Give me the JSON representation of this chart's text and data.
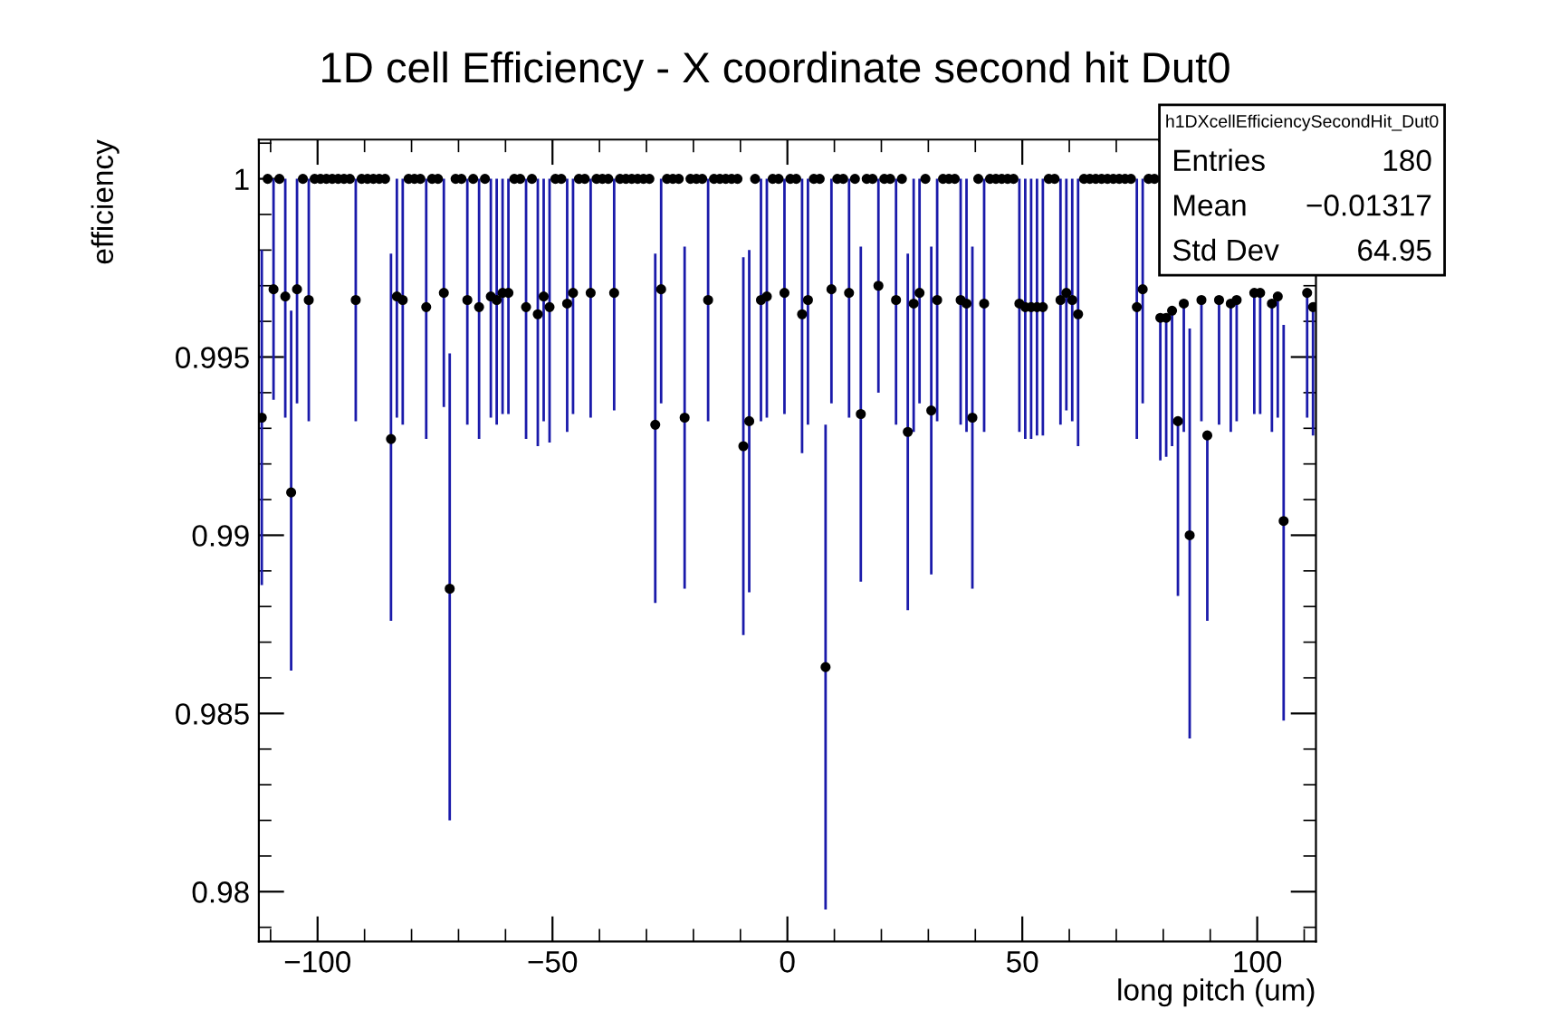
{
  "chart_data": {
    "type": "scatter",
    "title": "1D cell Efficiency - X coordinate second hit Dut0",
    "xlabel": "long pitch (um)",
    "ylabel": "efficiency",
    "xlim": [
      -112.5,
      112.5
    ],
    "ylim": [
      0.9786,
      1.0011
    ],
    "xticks": [
      -100,
      -50,
      0,
      50,
      100
    ],
    "yticks": [
      0.98,
      0.985,
      0.99,
      0.995,
      1
    ],
    "grid": false,
    "marker": "circle",
    "annotations": [
      "h1DXcellEfficiencySecondHit_Dut0",
      "Entries 180",
      "Mean −0.01317",
      "Std Dev 64.95"
    ],
    "series": [
      {
        "color": "#000000",
        "x": [
          -111.875,
          -110.625,
          -109.375,
          -108.125,
          -106.875,
          -105.625,
          -104.375,
          -103.125,
          -101.875,
          -100.625,
          -99.375,
          -98.125,
          -96.875,
          -95.625,
          -94.375,
          -93.125,
          -91.875,
          -90.625,
          -89.375,
          -88.125,
          -86.875,
          -85.625,
          -84.375,
          -83.125,
          -81.875,
          -80.625,
          -79.375,
          -78.125,
          -76.875,
          -75.625,
          -74.375,
          -73.125,
          -71.875,
          -70.625,
          -69.375,
          -68.125,
          -66.875,
          -65.625,
          -64.375,
          -63.125,
          -61.875,
          -60.625,
          -59.375,
          -58.125,
          -56.875,
          -55.625,
          -54.375,
          -53.125,
          -51.875,
          -50.625,
          -49.375,
          -48.125,
          -46.875,
          -45.625,
          -44.375,
          -43.125,
          -41.875,
          -40.625,
          -39.375,
          -38.125,
          -36.875,
          -35.625,
          -34.375,
          -33.125,
          -31.875,
          -30.625,
          -29.375,
          -28.125,
          -26.875,
          -25.625,
          -24.375,
          -23.125,
          -21.875,
          -20.625,
          -19.375,
          -18.125,
          -16.875,
          -15.625,
          -14.375,
          -13.125,
          -11.875,
          -10.625,
          -9.375,
          -8.125,
          -6.875,
          -5.625,
          -4.375,
          -3.125,
          -1.875,
          -0.625,
          0.625,
          1.875,
          3.125,
          4.375,
          5.625,
          6.875,
          8.125,
          9.375,
          10.625,
          11.875,
          13.125,
          14.375,
          15.625,
          16.875,
          18.125,
          19.375,
          20.625,
          21.875,
          23.125,
          24.375,
          25.625,
          26.875,
          28.125,
          29.375,
          30.625,
          31.875,
          33.125,
          34.375,
          35.625,
          36.875,
          38.125,
          39.375,
          40.625,
          41.875,
          43.125,
          44.375,
          45.625,
          46.875,
          48.125,
          49.375,
          50.625,
          51.875,
          53.125,
          54.375,
          55.625,
          56.875,
          58.125,
          59.375,
          60.625,
          61.875,
          63.125,
          64.375,
          65.625,
          66.875,
          68.125,
          69.375,
          70.625,
          71.875,
          73.125,
          74.375,
          75.625,
          76.875,
          78.125,
          79.375,
          80.625,
          81.875,
          83.125,
          84.375,
          85.625,
          86.875,
          88.125,
          89.375,
          90.625,
          91.875,
          93.125,
          94.375,
          95.625,
          96.875,
          98.125,
          99.375,
          100.625,
          101.875,
          103.125,
          104.375,
          105.625,
          106.875,
          108.125,
          109.375,
          110.625,
          111.875
        ],
        "values": [
          0.9933,
          1,
          0.9969,
          1,
          0.9967,
          0.9912,
          0.9969,
          1,
          0.9966,
          1,
          1,
          1,
          1,
          1,
          1,
          1,
          0.9966,
          1,
          1,
          1,
          1,
          1,
          0.9927,
          0.9967,
          0.9966,
          1,
          1,
          1,
          0.9964,
          1,
          1,
          0.9968,
          0.9885,
          1,
          1,
          0.9966,
          1,
          0.9964,
          1,
          0.9967,
          0.9966,
          0.9968,
          0.9968,
          1,
          1,
          0.9964,
          1,
          0.9962,
          0.9967,
          0.9964,
          1,
          1,
          0.9965,
          0.9968,
          1,
          1,
          0.9968,
          1,
          1,
          1,
          0.9968,
          1,
          1,
          1,
          1,
          1,
          1,
          0.9931,
          0.9969,
          1,
          1,
          1,
          0.9933,
          1,
          1,
          1,
          0.9966,
          1,
          1,
          1,
          1,
          1,
          0.9925,
          0.9932,
          1,
          0.9966,
          0.9967,
          1,
          1,
          0.9968,
          1,
          1,
          0.9962,
          0.9966,
          1,
          1,
          0.9863,
          0.9969,
          1,
          1,
          0.9968,
          1,
          0.9934,
          1,
          1,
          0.997,
          1,
          1,
          0.9966,
          1,
          0.9929,
          0.9965,
          0.9968,
          1,
          0.9935,
          0.9966,
          1,
          1,
          1,
          0.9966,
          0.9965,
          0.9933,
          1,
          0.9965,
          1,
          1,
          1,
          1,
          1,
          0.9965,
          0.9964,
          0.9964,
          0.9964,
          0.9964,
          1,
          1,
          0.9966,
          0.9968,
          0.9966,
          0.9962,
          1,
          1,
          1,
          1,
          1,
          1,
          1,
          1,
          1,
          0.9964,
          0.9969,
          1,
          1,
          0.9961,
          0.9961,
          0.9963,
          0.9932,
          0.9965,
          0.99,
          null,
          0.9966,
          0.9928,
          null,
          0.9966,
          null,
          0.9965,
          0.9966,
          null,
          null,
          0.9968,
          0.9968,
          null,
          0.9965,
          0.9967,
          0.9904,
          null,
          null,
          null,
          0.9968,
          0.9964
        ],
        "errors": [
          [
            0.9886,
            0.998
          ],
          null,
          [
            0.9938,
            1
          ],
          null,
          [
            0.9933,
            1
          ],
          [
            0.9862,
            0.9963
          ],
          [
            0.9937,
            1
          ],
          null,
          [
            0.9932,
            1
          ],
          null,
          null,
          null,
          null,
          null,
          null,
          null,
          [
            0.9932,
            1
          ],
          null,
          null,
          null,
          null,
          null,
          [
            0.9876,
            0.9979
          ],
          [
            0.9933,
            1
          ],
          [
            0.9931,
            1
          ],
          null,
          null,
          null,
          [
            0.9927,
            1
          ],
          null,
          null,
          [
            0.9936,
            1
          ],
          [
            0.982,
            0.9951
          ],
          null,
          null,
          [
            0.9931,
            1
          ],
          null,
          [
            0.9927,
            1
          ],
          null,
          [
            0.9933,
            1
          ],
          [
            0.9931,
            1
          ],
          [
            0.9934,
            1
          ],
          [
            0.9934,
            1
          ],
          null,
          null,
          [
            0.9927,
            1
          ],
          null,
          [
            0.9925,
            1
          ],
          [
            0.9932,
            1
          ],
          [
            0.9926,
            1
          ],
          null,
          null,
          [
            0.9929,
            1
          ],
          [
            0.9934,
            1
          ],
          null,
          null,
          [
            0.9933,
            1
          ],
          null,
          null,
          null,
          [
            0.9935,
            1
          ],
          null,
          null,
          null,
          null,
          null,
          null,
          [
            0.9881,
            0.9979
          ],
          [
            0.9937,
            1
          ],
          null,
          null,
          null,
          [
            0.9885,
            0.9981
          ],
          null,
          null,
          null,
          [
            0.9932,
            1
          ],
          null,
          null,
          null,
          null,
          null,
          [
            0.9872,
            0.9978
          ],
          [
            0.9884,
            0.998
          ],
          null,
          [
            0.9932,
            1
          ],
          [
            0.9933,
            1
          ],
          null,
          null,
          [
            0.9934,
            1
          ],
          null,
          null,
          [
            0.9923,
            1
          ],
          [
            0.9931,
            1
          ],
          null,
          null,
          [
            0.9795,
            0.9931
          ],
          [
            0.9937,
            1
          ],
          null,
          null,
          [
            0.9933,
            1
          ],
          null,
          [
            0.9887,
            0.9981
          ],
          null,
          null,
          [
            0.994,
            1
          ],
          null,
          null,
          [
            0.9931,
            1
          ],
          null,
          [
            0.9879,
            0.9979
          ],
          [
            0.9929,
            1
          ],
          [
            0.9937,
            1
          ],
          null,
          [
            0.9889,
            0.9981
          ],
          [
            0.9932,
            1
          ],
          null,
          null,
          null,
          [
            0.9931,
            1
          ],
          [
            0.9929,
            1
          ],
          [
            0.9885,
            0.9981
          ],
          null,
          [
            0.9929,
            1
          ],
          null,
          null,
          null,
          null,
          null,
          [
            0.9929,
            1
          ],
          [
            0.9927,
            1
          ],
          [
            0.9927,
            1
          ],
          [
            0.9928,
            1
          ],
          [
            0.9928,
            1
          ],
          null,
          null,
          [
            0.9931,
            1
          ],
          [
            0.9935,
            1
          ],
          [
            0.9932,
            1
          ],
          [
            0.9925,
            1
          ],
          null,
          null,
          null,
          null,
          null,
          null,
          null,
          null,
          null,
          [
            0.9927,
            1
          ],
          [
            0.9937,
            1
          ],
          null,
          null,
          [
            0.9921,
            0.9961
          ],
          [
            0.9922,
            0.9961
          ],
          [
            0.9925,
            0.9963
          ],
          [
            0.9883,
            0.9932
          ],
          [
            0.9929,
            0.9965
          ],
          [
            0.9843,
            0.9958
          ],
          null,
          [
            0.9932,
            0.9966
          ],
          [
            0.9876,
            0.9928
          ],
          null,
          [
            0.9931,
            0.9966
          ],
          null,
          [
            0.9929,
            0.9965
          ],
          [
            0.9932,
            0.9966
          ],
          null,
          null,
          [
            0.9934,
            0.9968
          ],
          [
            0.9934,
            0.9968
          ],
          null,
          [
            0.9929,
            0.9965
          ],
          [
            0.9933,
            0.9967
          ],
          [
            0.9848,
            0.9959
          ],
          null,
          null,
          null,
          [
            0.9933,
            0.9968
          ],
          [
            0.9928,
            0.9964
          ]
        ]
      }
    ]
  }
}
